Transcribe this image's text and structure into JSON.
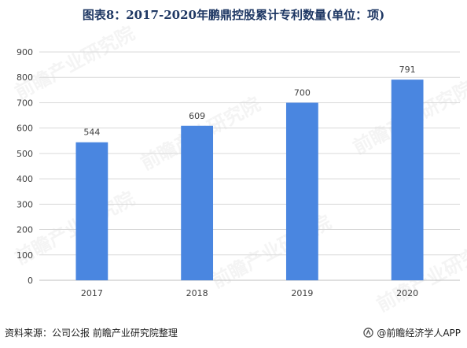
{
  "chart_data": {
    "type": "bar",
    "title": "图表8：2017-2020年鹏鼎控股累计专利数量(单位：项)",
    "categories": [
      "2017",
      "2018",
      "2019",
      "2020"
    ],
    "values": [
      544,
      609,
      700,
      791
    ],
    "data_labels": [
      "544",
      "609",
      "700",
      "791"
    ],
    "ylim": [
      0,
      900
    ],
    "yticks": [
      "0",
      "100",
      "200",
      "300",
      "400",
      "500",
      "600",
      "700",
      "800",
      "900"
    ],
    "xlabel": "",
    "ylabel": "",
    "grid": true,
    "legend": "none",
    "bar_color": "#4a86e0",
    "grid_color": "#d9d9d9"
  },
  "footer": {
    "source": "资料来源：公司公报 前瞻产业研究院整理",
    "credit": "@前瞻经济学人APP"
  },
  "watermark": {
    "text": "前瞻产业研究院"
  },
  "colors": {
    "title": "#1f3864",
    "bar": "#4a86e0"
  }
}
